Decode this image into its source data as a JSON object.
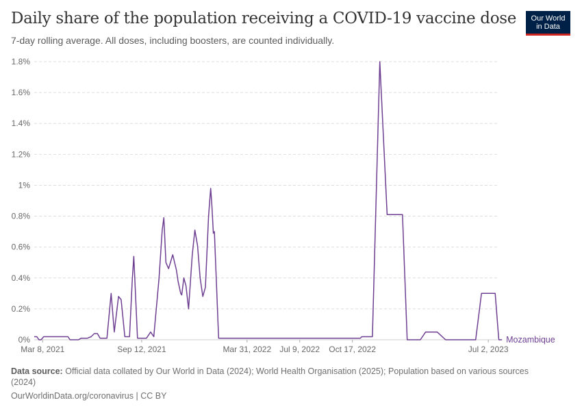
{
  "header": {
    "title": "Daily share of the population receiving a COVID-19 vaccine dose",
    "subtitle": "7-day rolling average. All doses, including boosters, are counted individually.",
    "logo_line1": "Our World",
    "logo_line2": "in Data"
  },
  "footer": {
    "source_label": "Data source:",
    "source_text": "Official data collated by Our World in Data (2024); World Health Organisation (2025); Population based on various sources (2024)",
    "url_text": "OurWorldinData.org/coronavirus | CC BY"
  },
  "colors": {
    "series": "#6d3e91",
    "grid": "#dddddd",
    "axis_text": "#666666"
  },
  "chart_data": {
    "type": "line",
    "title": "Daily share of the population receiving a COVID-19 vaccine dose",
    "subtitle": "7-day rolling average. All doses, including boosters, are counted individually.",
    "xlabel": "",
    "ylabel": "",
    "y_ticks": [
      0,
      0.2,
      0.4,
      0.6,
      0.8,
      1,
      1.2,
      1.4,
      1.6,
      1.8
    ],
    "y_tick_labels": [
      "0%",
      "0.2%",
      "0.4%",
      "0.6%",
      "0.8%",
      "1%",
      "1.2%",
      "1.4%",
      "1.6%",
      "1.8%"
    ],
    "ylim": [
      0,
      1.8
    ],
    "xlim": [
      "2021-02-20",
      "2023-07-20"
    ],
    "x_ticks": [
      "2021-03-08",
      "2021-09-12",
      "2022-03-31",
      "2022-07-09",
      "2022-10-17",
      "2023-07-02"
    ],
    "x_tick_labels": [
      "Mar 8, 2021",
      "Sep 12, 2021",
      "Mar 31, 2022",
      "Jul 9, 2022",
      "Oct 17, 2022",
      "Jul 2, 2023"
    ],
    "grid": true,
    "series": [
      {
        "name": "Mozambique",
        "points": [
          [
            "2021-02-20",
            0.02
          ],
          [
            "2021-02-25",
            0.02
          ],
          [
            "2021-03-01",
            0.0
          ],
          [
            "2021-03-05",
            0.0
          ],
          [
            "2021-03-10",
            0.02
          ],
          [
            "2021-04-01",
            0.02
          ],
          [
            "2021-04-25",
            0.02
          ],
          [
            "2021-04-29",
            0.0
          ],
          [
            "2021-05-15",
            0.0
          ],
          [
            "2021-05-20",
            0.01
          ],
          [
            "2021-06-01",
            0.01
          ],
          [
            "2021-06-08",
            0.02
          ],
          [
            "2021-06-14",
            0.04
          ],
          [
            "2021-06-20",
            0.04
          ],
          [
            "2021-06-25",
            0.01
          ],
          [
            "2021-06-30",
            0.01
          ],
          [
            "2021-07-08",
            0.01
          ],
          [
            "2021-07-16",
            0.3
          ],
          [
            "2021-07-22",
            0.05
          ],
          [
            "2021-07-30",
            0.28
          ],
          [
            "2021-08-04",
            0.26
          ],
          [
            "2021-08-11",
            0.02
          ],
          [
            "2021-08-20",
            0.02
          ],
          [
            "2021-08-25",
            0.38
          ],
          [
            "2021-08-28",
            0.54
          ],
          [
            "2021-09-04",
            0.01
          ],
          [
            "2021-09-21",
            0.01
          ],
          [
            "2021-09-29",
            0.05
          ],
          [
            "2021-10-05",
            0.02
          ],
          [
            "2021-10-15",
            0.4
          ],
          [
            "2021-10-21",
            0.71
          ],
          [
            "2021-10-24",
            0.79
          ],
          [
            "2021-10-28",
            0.5
          ],
          [
            "2021-11-02",
            0.46
          ],
          [
            "2021-11-10",
            0.55
          ],
          [
            "2021-11-17",
            0.45
          ],
          [
            "2021-11-20",
            0.38
          ],
          [
            "2021-11-25",
            0.3
          ],
          [
            "2021-11-27",
            0.29
          ],
          [
            "2021-12-01",
            0.4
          ],
          [
            "2021-12-05",
            0.35
          ],
          [
            "2021-12-10",
            0.2
          ],
          [
            "2021-12-17",
            0.55
          ],
          [
            "2021-12-22",
            0.71
          ],
          [
            "2021-12-27",
            0.61
          ],
          [
            "2022-01-01",
            0.4
          ],
          [
            "2022-01-06",
            0.28
          ],
          [
            "2022-01-11",
            0.34
          ],
          [
            "2022-01-17",
            0.8
          ],
          [
            "2022-01-21",
            0.98
          ],
          [
            "2022-01-23",
            0.88
          ],
          [
            "2022-01-26",
            0.69
          ],
          [
            "2022-01-28",
            0.7
          ],
          [
            "2022-02-05",
            0.01
          ],
          [
            "2022-03-31",
            0.01
          ],
          [
            "2022-07-09",
            0.01
          ],
          [
            "2022-10-17",
            0.01
          ],
          [
            "2022-11-01",
            0.01
          ],
          [
            "2022-11-04",
            0.02
          ],
          [
            "2022-11-24",
            0.02
          ],
          [
            "2022-12-08",
            1.8
          ],
          [
            "2022-12-22",
            0.81
          ],
          [
            "2023-01-20",
            0.81
          ],
          [
            "2023-01-29",
            0.0
          ],
          [
            "2023-02-23",
            0.0
          ],
          [
            "2023-03-05",
            0.05
          ],
          [
            "2023-03-27",
            0.05
          ],
          [
            "2023-04-12",
            0.0
          ],
          [
            "2023-05-25",
            0.0
          ],
          [
            "2023-06-08",
            0.0
          ],
          [
            "2023-06-19",
            0.3
          ],
          [
            "2023-07-15",
            0.3
          ],
          [
            "2023-07-22",
            0.0
          ],
          [
            "2023-07-28",
            0.0
          ]
        ]
      }
    ]
  }
}
